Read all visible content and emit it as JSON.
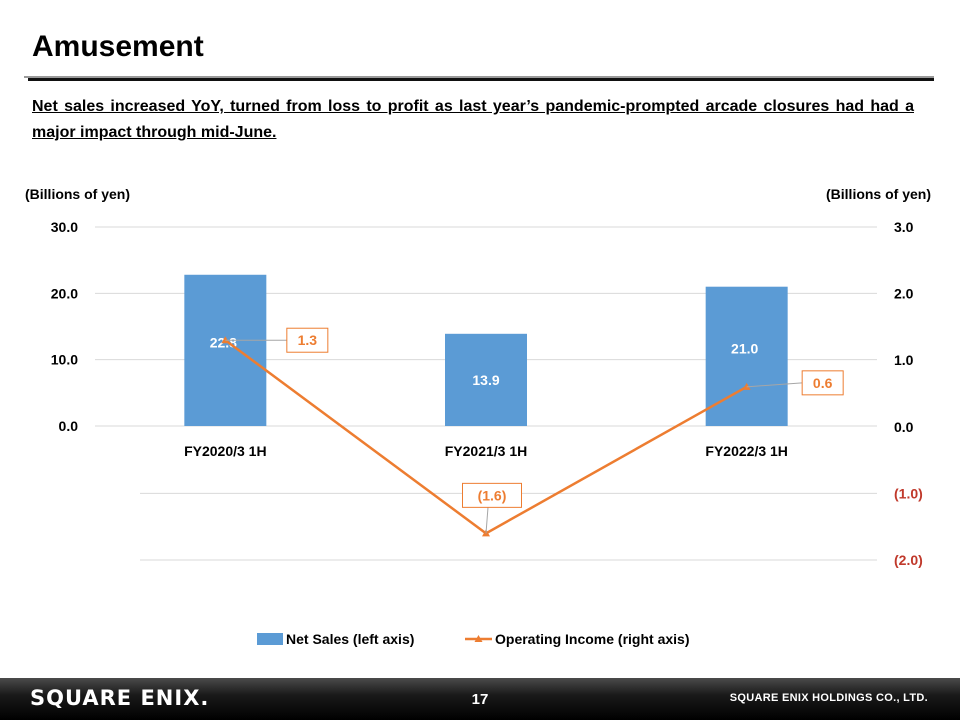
{
  "page": {
    "title": "Amusement",
    "lead": "Net sales increased YoY, turned from loss to profit as last year’s pandemic-prompted arcade closures had had a major impact through mid-June."
  },
  "footer": {
    "logo": "SQUARE ENIX.",
    "page_number": "17",
    "company": "SQUARE ENIX HOLDINGS CO., LTD."
  },
  "chart_data": {
    "type": "bar",
    "categories": [
      "FY2020/3 1H",
      "FY2021/3 1H",
      "FY2022/3 1H"
    ],
    "left_axis": {
      "unit_label": "(Billions of yen)",
      "ticks": [
        "0.0",
        "10.0",
        "20.0",
        "30.0"
      ],
      "tick_values": [
        0,
        10,
        20,
        30
      ],
      "ylim": [
        -20,
        30
      ]
    },
    "right_axis": {
      "unit_label": "(Billions of yen)",
      "ticks": [
        "(2.0)",
        "(1.0)",
        "0.0",
        "1.0",
        "2.0",
        "3.0"
      ],
      "tick_values": [
        -2,
        -1,
        0,
        1,
        2,
        3
      ],
      "ylim": [
        -2,
        3
      ]
    },
    "series": [
      {
        "name": "Net Sales (left axis)",
        "type": "bar",
        "axis": "left",
        "color": "#5b9bd5",
        "values": [
          22.8,
          13.9,
          21.0
        ],
        "labels": [
          "22.8",
          "13.9",
          "21.0"
        ]
      },
      {
        "name": "Operating Income (right axis)",
        "type": "line",
        "axis": "right",
        "color": "#ed7d31",
        "values": [
          1.3,
          -1.6,
          0.6
        ],
        "labels": [
          "1.3",
          "(1.6)",
          "0.6"
        ]
      }
    ],
    "grid": true,
    "legend_position": "bottom",
    "negative_tick_color": "#c0392b"
  }
}
